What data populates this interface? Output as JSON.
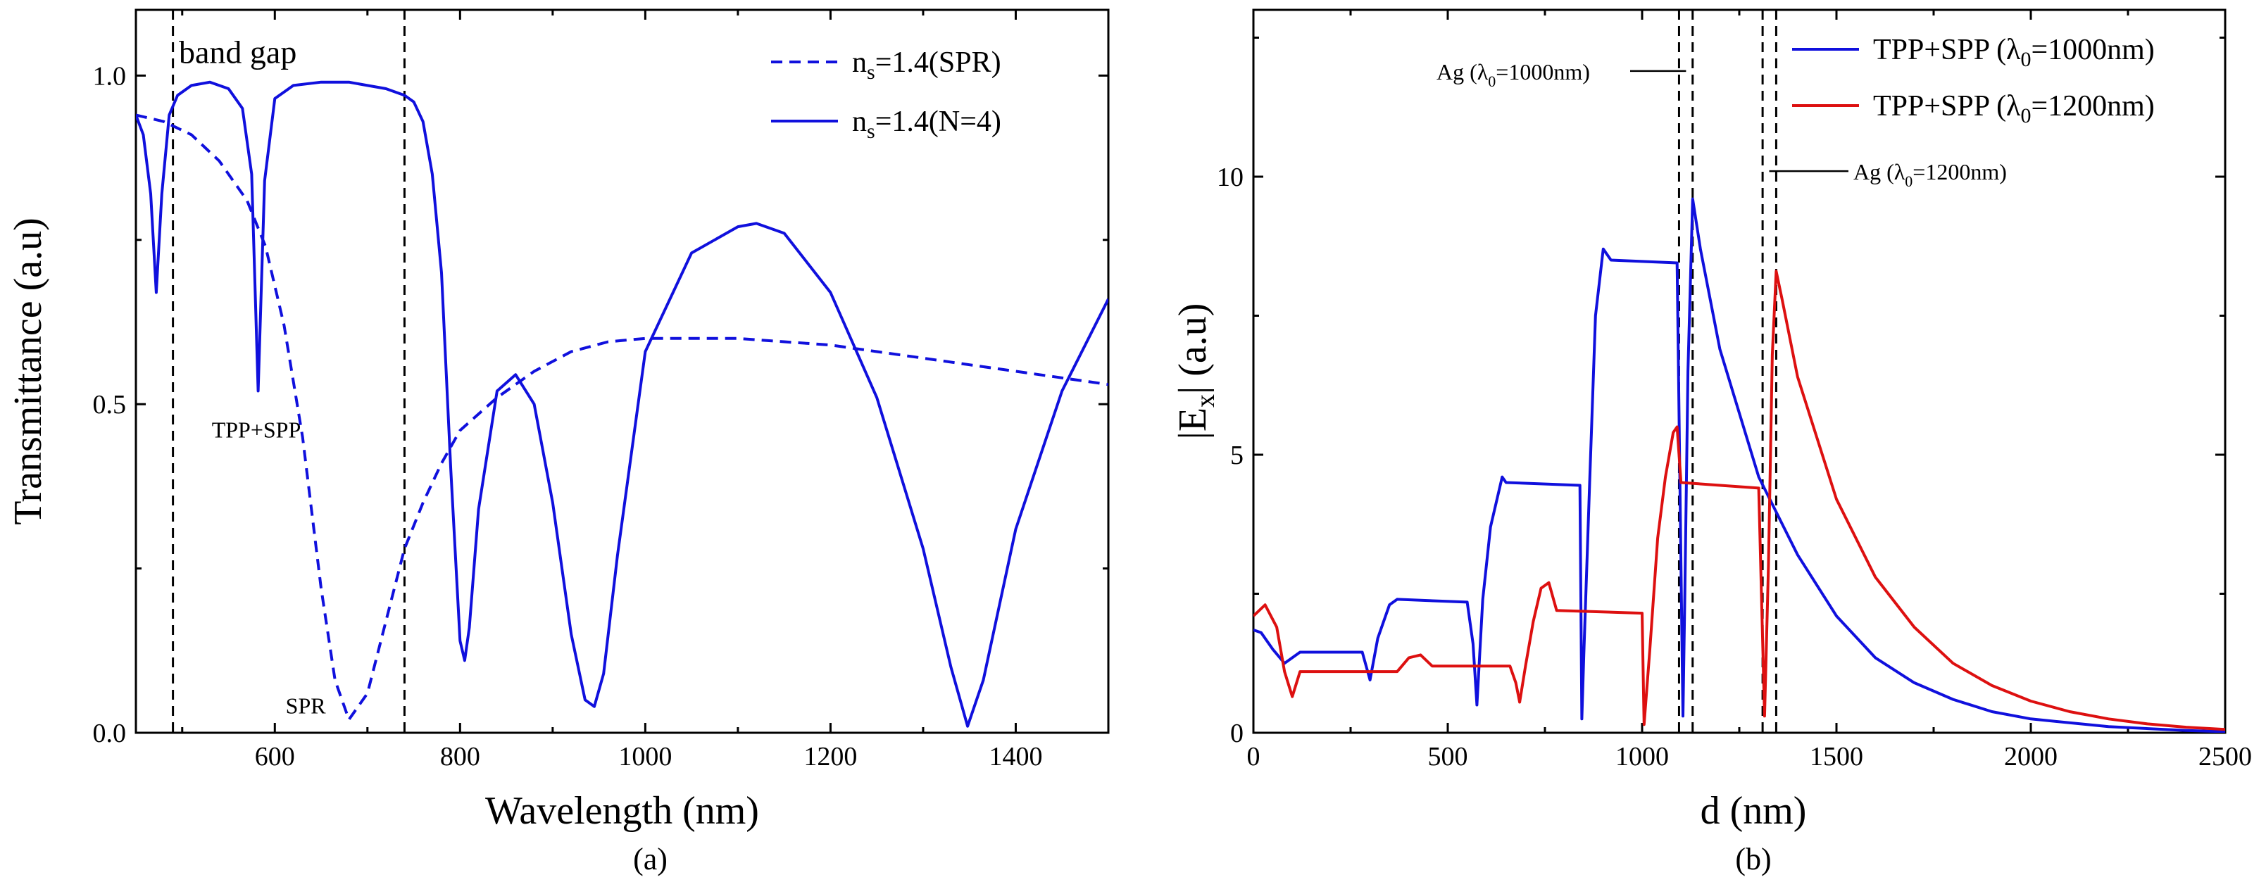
{
  "chart_data": [
    {
      "type": "line",
      "panel_label": "(a)",
      "xlabel": "Wavelength (nm)",
      "ylabel": "Transmittance (a.u)",
      "xlim": [
        450,
        1500
      ],
      "ylim": [
        0,
        1.1
      ],
      "x_ticks": [
        600,
        800,
        1000,
        1200,
        1400
      ],
      "y_ticks": [
        0.0,
        0.5,
        1.0
      ],
      "y_tick_labels": [
        "0.0",
        "0.5",
        "1.0"
      ],
      "grid": false,
      "legend_position": "top-right",
      "colors": {
        "series": "#1010dd",
        "reference": "#000000"
      },
      "band_gap_lines": [
        490,
        740
      ],
      "annotations": [
        {
          "text": "band gap",
          "x": 560,
          "y": 1.03
        },
        {
          "text": "TPP+SPP",
          "x": 580,
          "y": 0.46
        },
        {
          "text": "SPR",
          "x": 655,
          "y": 0.04
        }
      ],
      "series": [
        {
          "name": "n",
          "name_sub": "s",
          "name_rest": "=1.4(SPR)",
          "style": "dashed",
          "x": [
            450,
            480,
            510,
            540,
            570,
            590,
            610,
            630,
            650,
            665,
            680,
            700,
            720,
            740,
            760,
            780,
            800,
            840,
            880,
            920,
            960,
            1000,
            1050,
            1100,
            1150,
            1200,
            1250,
            1300,
            1350,
            1400,
            1450,
            1500
          ],
          "y": [
            0.94,
            0.93,
            0.91,
            0.87,
            0.81,
            0.74,
            0.62,
            0.45,
            0.22,
            0.08,
            0.02,
            0.06,
            0.17,
            0.28,
            0.35,
            0.41,
            0.46,
            0.51,
            0.55,
            0.58,
            0.595,
            0.6,
            0.6,
            0.6,
            0.595,
            0.59,
            0.58,
            0.57,
            0.56,
            0.55,
            0.54,
            0.53
          ]
        },
        {
          "name": "n",
          "name_sub": "s",
          "name_rest": "=1.4(N=4)",
          "style": "solid",
          "x": [
            450,
            458,
            466,
            472,
            478,
            486,
            495,
            510,
            530,
            550,
            565,
            575,
            582,
            589,
            600,
            620,
            650,
            680,
            700,
            720,
            740,
            750,
            760,
            770,
            780,
            790,
            800,
            805,
            810,
            820,
            840,
            860,
            880,
            900,
            920,
            935,
            945,
            955,
            970,
            1000,
            1050,
            1100,
            1120,
            1150,
            1200,
            1250,
            1300,
            1330,
            1348,
            1365,
            1400,
            1450,
            1500
          ],
          "y": [
            0.94,
            0.91,
            0.82,
            0.67,
            0.82,
            0.94,
            0.97,
            0.985,
            0.99,
            0.98,
            0.95,
            0.85,
            0.52,
            0.84,
            0.965,
            0.985,
            0.99,
            0.99,
            0.985,
            0.98,
            0.97,
            0.96,
            0.93,
            0.85,
            0.7,
            0.4,
            0.14,
            0.11,
            0.16,
            0.34,
            0.52,
            0.545,
            0.5,
            0.35,
            0.15,
            0.05,
            0.04,
            0.09,
            0.27,
            0.58,
            0.73,
            0.77,
            0.775,
            0.76,
            0.67,
            0.51,
            0.28,
            0.1,
            0.01,
            0.08,
            0.31,
            0.52,
            0.66
          ]
        }
      ]
    },
    {
      "type": "line",
      "panel_label": "(b)",
      "xlabel": "d (nm)",
      "ylabel": "|E",
      "ylabel_sub": "x",
      "ylabel_rest": "| (a.u)",
      "xlim": [
        0,
        2500
      ],
      "ylim": [
        0,
        13
      ],
      "x_ticks": [
        0,
        500,
        1000,
        1500,
        2000,
        2500
      ],
      "y_ticks": [
        0,
        5,
        10
      ],
      "grid": false,
      "legend_position": "top-right",
      "colors": {
        "blue": "#1010dd",
        "red": "#dd1010"
      },
      "ag_lines": [
        1095,
        1130,
        1310,
        1345
      ],
      "annotations": [
        {
          "pre": "Ag (λ",
          "sub": "0",
          "post": "=1000nm)",
          "x": 400,
          "y": 11.9
        },
        {
          "pre": "Ag (λ",
          "sub": "0",
          "post": "=1200nm)",
          "x": 1535,
          "y": 10.1
        }
      ],
      "series": [
        {
          "name": "TPP+SPP (λ",
          "name_sub": "0",
          "name_rest": "=1000nm)",
          "color": "#1010dd",
          "x": [
            0,
            20,
            50,
            80,
            100,
            120,
            280,
            300,
            320,
            350,
            370,
            550,
            565,
            575,
            590,
            610,
            640,
            650,
            840,
            845,
            850,
            865,
            880,
            900,
            920,
            1090,
            1100,
            1105,
            1110,
            1118,
            1130,
            1150,
            1200,
            1300,
            1400,
            1500,
            1600,
            1700,
            1800,
            1900,
            2000,
            2200,
            2400,
            2500
          ],
          "y": [
            1.85,
            1.8,
            1.5,
            1.25,
            1.35,
            1.45,
            1.45,
            0.95,
            1.7,
            2.3,
            2.4,
            2.35,
            1.6,
            0.5,
            2.4,
            3.7,
            4.6,
            4.5,
            4.45,
            0.25,
            1.4,
            4.5,
            7.5,
            8.7,
            8.5,
            8.45,
            3.0,
            0.3,
            2.5,
            6.5,
            9.6,
            8.7,
            6.9,
            4.6,
            3.2,
            2.1,
            1.35,
            0.9,
            0.6,
            0.38,
            0.25,
            0.11,
            0.04,
            0.02
          ]
        },
        {
          "name": "TPP+SPP (λ",
          "name_sub": "0",
          "name_rest": "=1200nm)",
          "color": "#dd1010",
          "x": [
            0,
            30,
            60,
            80,
            100,
            120,
            370,
            400,
            430,
            460,
            480,
            660,
            675,
            685,
            700,
            720,
            740,
            760,
            780,
            1000,
            1005,
            1020,
            1040,
            1060,
            1080,
            1090,
            1100,
            1300,
            1315,
            1325,
            1335,
            1345,
            1360,
            1400,
            1500,
            1600,
            1700,
            1800,
            1900,
            2000,
            2100,
            2200,
            2300,
            2400,
            2500
          ],
          "y": [
            2.1,
            2.3,
            1.9,
            1.1,
            0.65,
            1.1,
            1.1,
            1.35,
            1.4,
            1.2,
            1.2,
            1.2,
            0.9,
            0.55,
            1.2,
            2.0,
            2.6,
            2.7,
            2.2,
            2.15,
            0.15,
            1.5,
            3.5,
            4.6,
            5.4,
            5.5,
            4.5,
            4.4,
            0.3,
            3.0,
            6.8,
            8.3,
            7.8,
            6.4,
            4.2,
            2.8,
            1.9,
            1.25,
            0.85,
            0.57,
            0.38,
            0.25,
            0.16,
            0.1,
            0.06
          ]
        }
      ]
    }
  ]
}
